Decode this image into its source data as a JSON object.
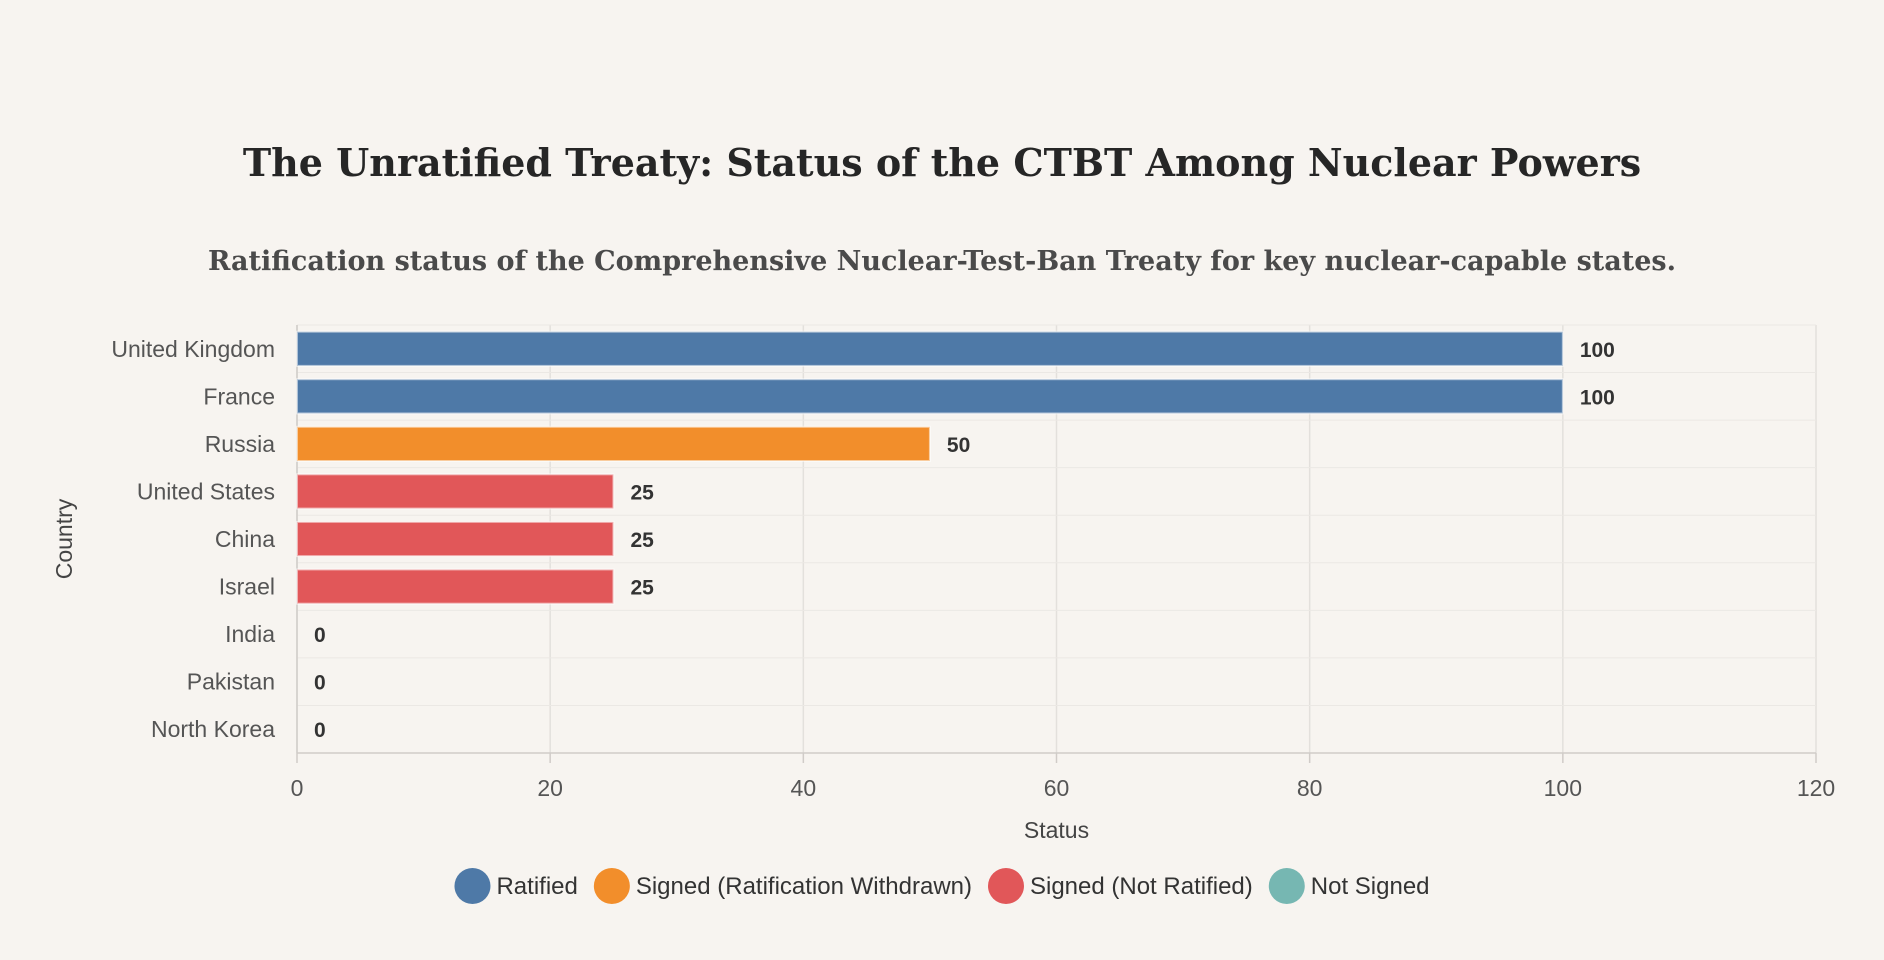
{
  "chart_data": {
    "type": "bar",
    "orientation": "horizontal",
    "title": "The Unratified Treaty: Status of the CTBT Among Nuclear Powers",
    "subtitle": "Ratification status of the Comprehensive Nuclear-Test-Ban Treaty for key nuclear-capable states.",
    "xlabel": "Status",
    "ylabel": "Country",
    "xlim": [
      0,
      120
    ],
    "xticks": [
      0,
      20,
      40,
      60,
      80,
      100,
      120
    ],
    "grid": true,
    "legend_position": "bottom",
    "categories": [
      "United Kingdom",
      "France",
      "Russia",
      "United States",
      "China",
      "Israel",
      "India",
      "Pakistan",
      "North Korea"
    ],
    "values": [
      100,
      100,
      50,
      25,
      25,
      25,
      0,
      0,
      0
    ],
    "status": [
      "Ratified",
      "Ratified",
      "Signed (Ratification Withdrawn)",
      "Signed (Not Ratified)",
      "Signed (Not Ratified)",
      "Signed (Not Ratified)",
      "Not Signed",
      "Not Signed",
      "Not Signed"
    ],
    "legend": [
      {
        "label": "Ratified",
        "color": "#4e79a7"
      },
      {
        "label": "Signed (Ratification Withdrawn)",
        "color": "#f28e2b"
      },
      {
        "label": "Signed (Not Ratified)",
        "color": "#e15759"
      },
      {
        "label": "Not Signed",
        "color": "#76b7b2"
      }
    ]
  }
}
